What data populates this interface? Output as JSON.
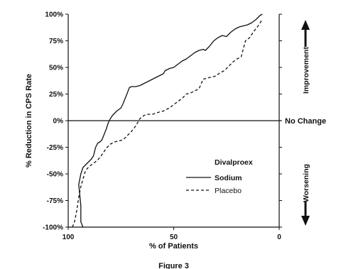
{
  "chart_data": {
    "type": "line",
    "caption": "Figure 3",
    "xlabel": "% of Patients",
    "ylabel": "% Reduction in CPS Rate",
    "xlim": [
      100,
      0
    ],
    "ylim": [
      -100,
      100
    ],
    "x_ticks": [
      100,
      50,
      0
    ],
    "x_tick_labels": [
      "100",
      "50",
      "0"
    ],
    "y_ticks": [
      100,
      75,
      50,
      25,
      0,
      -25,
      -50,
      -75,
      -100
    ],
    "y_tick_labels": [
      "100%",
      "75%",
      "50%",
      "25%",
      "0%",
      "-25%",
      "-50%",
      "-75%",
      "-100%"
    ],
    "reference_line": {
      "y": 0,
      "label": "No Change"
    },
    "side_labels": {
      "top": "Improvement",
      "bottom": "Worsening"
    },
    "legend_title": "Divalproex",
    "colors": {
      "axis": "#111111",
      "series": "#111111"
    },
    "series": [
      {
        "name": "Sodium",
        "style": "solid",
        "x": [
          93,
          94,
          94,
          95,
          94,
          93,
          91,
          89,
          88,
          87,
          86,
          85,
          84,
          82,
          81,
          80,
          79,
          77,
          75,
          74,
          72,
          71,
          70,
          68,
          66,
          64,
          62,
          60,
          58,
          56,
          55,
          54,
          52,
          50,
          48,
          46,
          44,
          42,
          40,
          38,
          36,
          35,
          33,
          31,
          29,
          27,
          25,
          23,
          21,
          19,
          17,
          15,
          14,
          13,
          11,
          9,
          8
        ],
        "y": [
          -100,
          -95,
          -80,
          -60,
          -50,
          -44,
          -40,
          -36,
          -33,
          -25,
          -21,
          -20,
          -18,
          -8,
          -2,
          2,
          5,
          9,
          12,
          16,
          26,
          31,
          32,
          32,
          33,
          35,
          37,
          39,
          41,
          43,
          44,
          47,
          49,
          50,
          53,
          56,
          58,
          61,
          64,
          66,
          67,
          66,
          70,
          75,
          78,
          80,
          79,
          83,
          86,
          88,
          89,
          90,
          91,
          92,
          95,
          99,
          100
        ]
      },
      {
        "name": "Placebo",
        "style": "dashed",
        "x": [
          98,
          97,
          96,
          95,
          94,
          93,
          92,
          91,
          90,
          88,
          86,
          84,
          82,
          80,
          78,
          76,
          74,
          72,
          70,
          68,
          66,
          64,
          62,
          60,
          57,
          55,
          52,
          50,
          48,
          46,
          44,
          42,
          40,
          38,
          36,
          34,
          32,
          30,
          28,
          26,
          24,
          22,
          20,
          18,
          16,
          14,
          12,
          10,
          8
        ],
        "y": [
          -100,
          -95,
          -85,
          -72,
          -62,
          -55,
          -48,
          -45,
          -43,
          -40,
          -37,
          -32,
          -26,
          -22,
          -20,
          -19,
          -18,
          -14,
          -10,
          -5,
          2,
          5,
          6,
          6,
          8,
          9,
          12,
          15,
          18,
          21,
          25,
          26,
          28,
          30,
          39,
          40,
          41,
          42,
          45,
          47,
          51,
          55,
          58,
          60,
          75,
          78,
          84,
          89,
          95
        ]
      }
    ]
  }
}
